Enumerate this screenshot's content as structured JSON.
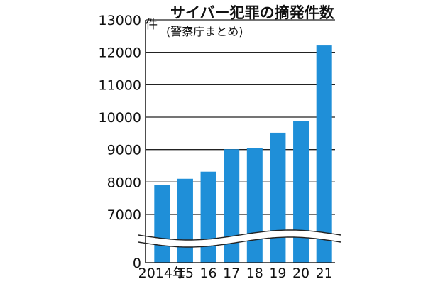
{
  "chart_data": {
    "type": "bar",
    "title": "サイバー犯罪の摘発件数",
    "subtitle": "(警察庁まとめ)",
    "unit": "件",
    "categories": [
      "2014年",
      "15",
      "16",
      "17",
      "18",
      "19",
      "20",
      "21"
    ],
    "values": [
      7900,
      8100,
      8320,
      9010,
      9040,
      9520,
      9880,
      12210
    ],
    "y_ticks": [
      "13000",
      "12000",
      "11000",
      "10000",
      "9000",
      "8000",
      "7000",
      "0"
    ],
    "ylim": [
      0,
      13000
    ],
    "axis_break": true,
    "grid": true,
    "bar_color": "#1f8fd8"
  }
}
